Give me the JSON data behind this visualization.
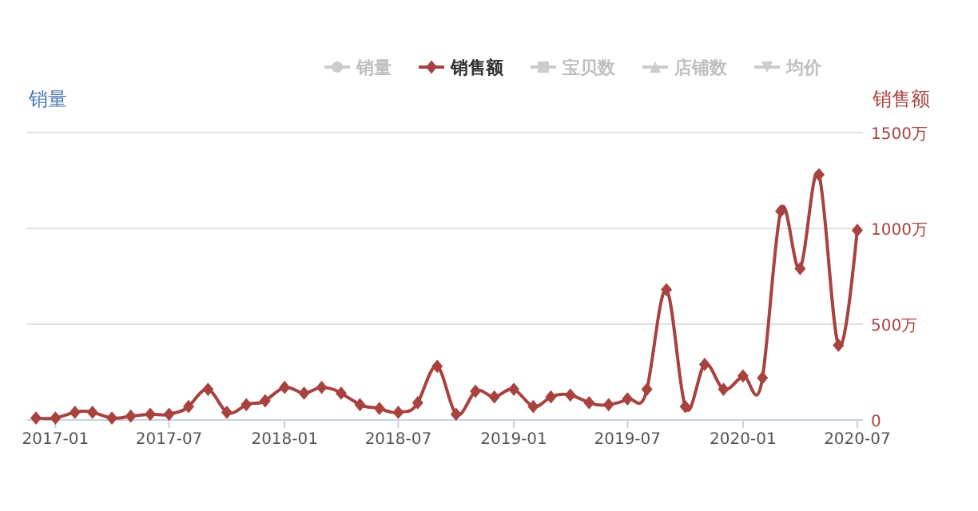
{
  "chart_data": {
    "type": "line",
    "ylabel": "销量",
    "y2label": "销售额",
    "x": [
      "2016-12",
      "2017-01",
      "2017-02",
      "2017-03",
      "2017-04",
      "2017-05",
      "2017-06",
      "2017-07",
      "2017-08",
      "2017-09",
      "2017-10",
      "2017-11",
      "2017-12",
      "2018-01",
      "2018-02",
      "2018-03",
      "2018-04",
      "2018-05",
      "2018-06",
      "2018-07",
      "2018-08",
      "2018-09",
      "2018-10",
      "2018-11",
      "2018-12",
      "2019-01",
      "2019-02",
      "2019-03",
      "2019-04",
      "2019-05",
      "2019-06",
      "2019-07",
      "2019-08",
      "2019-09",
      "2019-10",
      "2019-11",
      "2019-12",
      "2020-01",
      "2020-02",
      "2020-03",
      "2020-04",
      "2020-05",
      "2020-06",
      "2020-07"
    ],
    "series": [
      {
        "name": "销量",
        "color": "#cccccc",
        "marker": "circle",
        "values": [
          null,
          null,
          null,
          null,
          null,
          null,
          null,
          null,
          null,
          null,
          null,
          null,
          null,
          null,
          null,
          null,
          null,
          null,
          null,
          null,
          null,
          null,
          null,
          null,
          null,
          null,
          null,
          null,
          null,
          null,
          null,
          null,
          null,
          null,
          null,
          null,
          null,
          null,
          null,
          null,
          null,
          null,
          null,
          null
        ]
      },
      {
        "name": "销售额",
        "color": "#a8423f",
        "marker": "diamond",
        "axis": "y2",
        "values": [
          10,
          10,
          40,
          40,
          10,
          20,
          30,
          30,
          70,
          160,
          40,
          80,
          100,
          170,
          140,
          170,
          140,
          80,
          60,
          40,
          90,
          280,
          30,
          150,
          120,
          160,
          70,
          120,
          130,
          90,
          80,
          110,
          160,
          680,
          70,
          290,
          160,
          230,
          220,
          1090,
          790,
          1280,
          390,
          990
        ]
      },
      {
        "name": "宝贝数",
        "color": "#cccccc",
        "marker": "square",
        "values": [
          null,
          null,
          null,
          null,
          null,
          null,
          null,
          null,
          null,
          null,
          null,
          null,
          null,
          null,
          null,
          null,
          null,
          null,
          null,
          null,
          null,
          null,
          null,
          null,
          null,
          null,
          null,
          null,
          null,
          null,
          null,
          null,
          null,
          null,
          null,
          null,
          null,
          null,
          null,
          null,
          null,
          null,
          null,
          null
        ]
      },
      {
        "name": "店铺数",
        "color": "#cccccc",
        "marker": "triangle",
        "values": [
          null,
          null,
          null,
          null,
          null,
          null,
          null,
          null,
          null,
          null,
          null,
          null,
          null,
          null,
          null,
          null,
          null,
          null,
          null,
          null,
          null,
          null,
          null,
          null,
          null,
          null,
          null,
          null,
          null,
          null,
          null,
          null,
          null,
          null,
          null,
          null,
          null,
          null,
          null,
          null,
          null,
          null,
          null,
          null
        ]
      },
      {
        "name": "均价",
        "color": "#cccccc",
        "marker": "cross",
        "values": [
          null,
          null,
          null,
          null,
          null,
          null,
          null,
          null,
          null,
          null,
          null,
          null,
          null,
          null,
          null,
          null,
          null,
          null,
          null,
          null,
          null,
          null,
          null,
          null,
          null,
          null,
          null,
          null,
          null,
          null,
          null,
          null,
          null,
          null,
          null,
          null,
          null,
          null,
          null,
          null,
          null,
          null,
          null,
          null
        ]
      }
    ],
    "xlim": [
      "2016-11-17",
      "2020-07-10"
    ],
    "xticks": [
      "2017-01",
      "2017-07",
      "2018-01",
      "2018-07",
      "2019-01",
      "2019-07",
      "2020-01",
      "2020-07"
    ],
    "y2lim": [
      0,
      1500
    ],
    "y2ticks": [
      0,
      {
        "value": 500,
        "label": "500万"
      },
      {
        "value": 1000,
        "label": "1000万"
      },
      {
        "value": 1500,
        "label": "1500万"
      }
    ],
    "grid": "y",
    "legend": "top",
    "line_style": "solid"
  }
}
